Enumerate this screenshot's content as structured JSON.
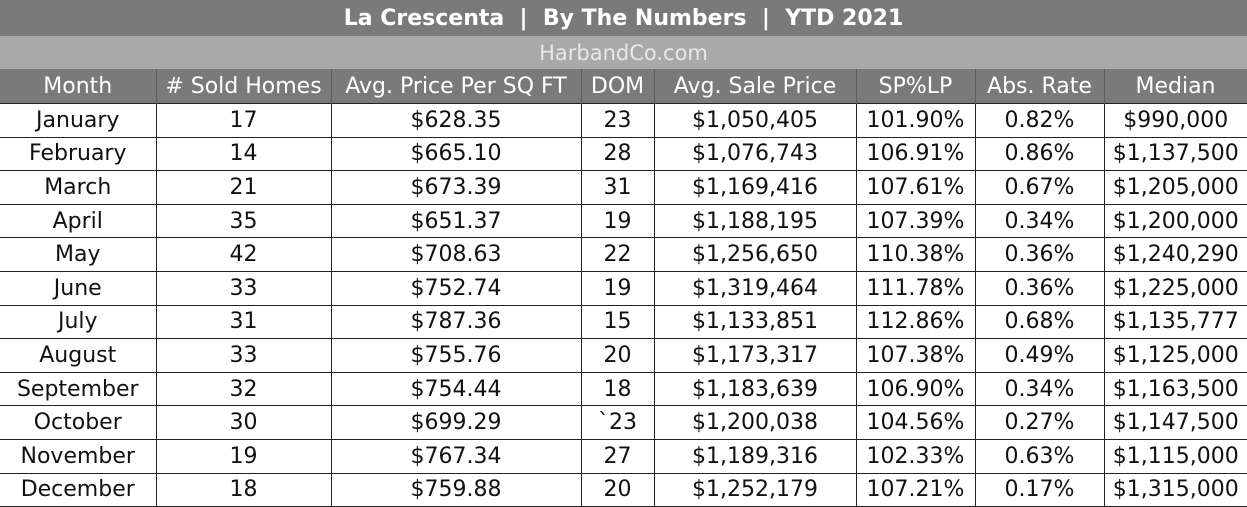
{
  "title": "La Crescenta  |  By The Numbers  |  YTD 2021",
  "subtitle": "HarbandCo.com",
  "columns": [
    "Month",
    "# Sold Homes",
    "Avg. Price Per SQ FT",
    "DOM",
    "Avg. Sale Price",
    "SP%LP",
    "Abs. Rate",
    "Median"
  ],
  "rows": [
    [
      "January",
      "17",
      "$628.35",
      "23",
      "$1,050,405",
      "101.90%",
      "0.82%",
      "$990,000"
    ],
    [
      "February",
      "14",
      "$665.10",
      "28",
      "$1,076,743",
      "106.91%",
      "0.86%",
      "$1,137,500"
    ],
    [
      "March",
      "21",
      "$673.39",
      "31",
      "$1,169,416",
      "107.61%",
      "0.67%",
      "$1,205,000"
    ],
    [
      "April",
      "35",
      "$651.37",
      "19",
      "$1,188,195",
      "107.39%",
      "0.34%",
      "$1,200,000"
    ],
    [
      "May",
      "42",
      "$708.63",
      "22",
      "$1,256,650",
      "110.38%",
      "0.36%",
      "$1,240,290"
    ],
    [
      "June",
      "33",
      "$752.74",
      "19",
      "$1,319,464",
      "111.78%",
      "0.36%",
      "$1,225,000"
    ],
    [
      "July",
      "31",
      "$787.36",
      "15",
      "$1,133,851",
      "112.86%",
      "0.68%",
      "$1,135,777"
    ],
    [
      "August",
      "33",
      "$755.76",
      "20",
      "$1,173,317",
      "107.38%",
      "0.49%",
      "$1,125,000"
    ],
    [
      "September",
      "32",
      "$754.44",
      "18",
      "$1,183,639",
      "106.90%",
      "0.34%",
      "$1,163,500"
    ],
    [
      "October",
      "30",
      "$699.29",
      "`23",
      "$1,200,038",
      "104.56%",
      "0.27%",
      "$1,147,500"
    ],
    [
      "November",
      "19",
      "$767.34",
      "27",
      "$1,189,316",
      "102.33%",
      "0.63%",
      "$1,115,000"
    ],
    [
      "December",
      "18",
      "$759.88",
      "20",
      "$1,252,179",
      "107.21%",
      "0.17%",
      "$1,315,000"
    ]
  ]
}
